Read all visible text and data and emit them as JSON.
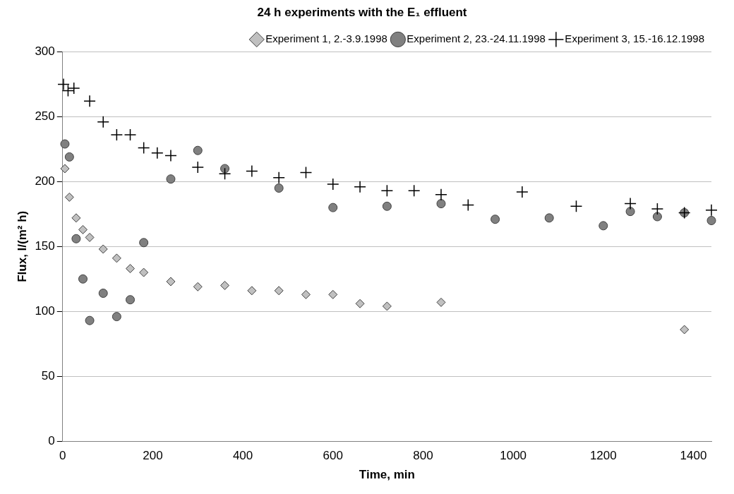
{
  "chart_data": {
    "type": "scatter",
    "title": "24 h experiments with the E₁ effluent",
    "xlabel": "Time, min",
    "ylabel": "Flux, l/(m² h)",
    "xlim": [
      0,
      1440
    ],
    "xticks": [
      0,
      200,
      400,
      600,
      800,
      1000,
      1200,
      1400
    ],
    "ylim": [
      0,
      300
    ],
    "yticks": [
      0,
      50,
      100,
      150,
      200,
      250,
      300
    ],
    "grid": "y",
    "legend": "top right",
    "series": [
      {
        "name": "Experiment 1, 2.-3.9.1998",
        "color": "#c0c0c0",
        "marker": "diamond",
        "x": [
          5,
          15,
          30,
          45,
          60,
          90,
          120,
          150,
          180,
          240,
          300,
          360,
          420,
          480,
          540,
          600,
          660,
          720,
          840,
          1380
        ],
        "values": [
          210,
          188,
          172,
          163,
          157,
          148,
          141,
          133,
          130,
          123,
          119,
          120,
          116,
          116,
          113,
          113,
          106,
          104,
          107,
          86
        ]
      },
      {
        "name": "Experiment 2, 23.-24.11.1998",
        "color": "#808080",
        "marker": "circle",
        "x": [
          5,
          15,
          30,
          45,
          60,
          90,
          120,
          150,
          180,
          240,
          300,
          360,
          480,
          600,
          720,
          840,
          960,
          1080,
          1200,
          1260,
          1320,
          1380,
          1440
        ],
        "values": [
          229,
          219,
          156,
          125,
          93,
          114,
          96,
          109,
          153,
          202,
          224,
          210,
          195,
          180,
          181,
          183,
          171,
          172,
          166,
          177,
          173,
          176,
          170
        ]
      },
      {
        "name": "Experiment 3, 15.-16.12.1998",
        "color": "#000000",
        "marker": "cross",
        "x": [
          2,
          12,
          25,
          60,
          90,
          120,
          150,
          180,
          210,
          240,
          300,
          360,
          420,
          480,
          540,
          600,
          660,
          720,
          780,
          840,
          900,
          1020,
          1140,
          1260,
          1320,
          1380,
          1440
        ],
        "values": [
          275,
          270,
          272,
          262,
          246,
          236,
          236,
          226,
          222,
          220,
          211,
          206,
          208,
          203,
          207,
          198,
          196,
          193,
          193,
          190,
          182,
          192,
          181,
          183,
          179,
          176,
          178
        ]
      }
    ]
  }
}
